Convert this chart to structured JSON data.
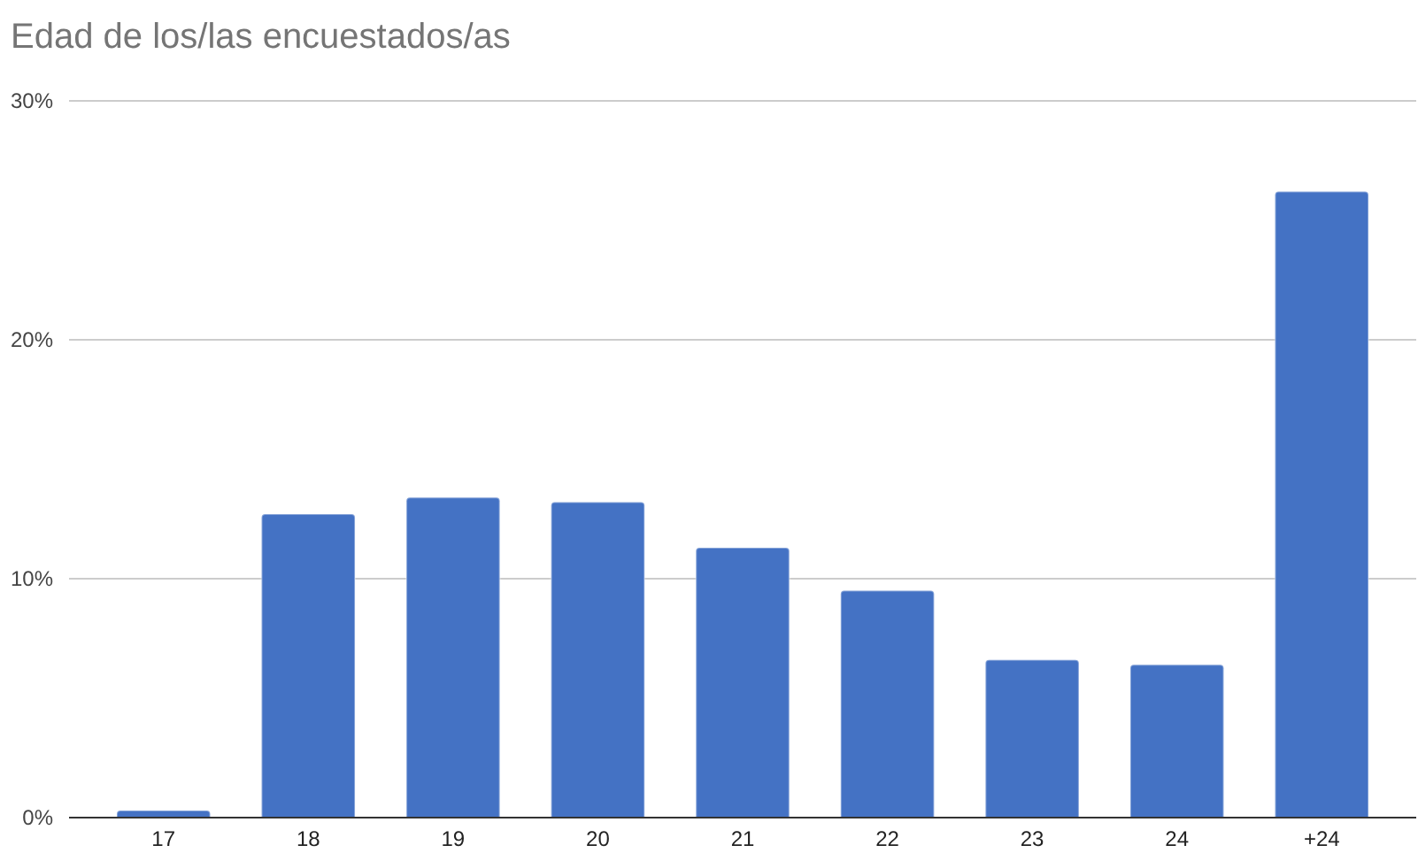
{
  "chart_data": {
    "type": "bar",
    "title": "Edad de los/las encuestados/as",
    "categories": [
      "17",
      "18",
      "19",
      "20",
      "21",
      "22",
      "23",
      "24",
      "+24"
    ],
    "values": [
      0.3,
      12.7,
      13.4,
      13.2,
      11.3,
      9.5,
      6.6,
      6.4,
      26.2
    ],
    "color": "#4472c4",
    "ylim": [
      0,
      30
    ],
    "yticks": [
      {
        "value": 0,
        "label": "0%"
      },
      {
        "value": 10,
        "label": "10%"
      },
      {
        "value": 20,
        "label": "20%"
      },
      {
        "value": 30,
        "label": "30%"
      }
    ],
    "grid": "y"
  }
}
